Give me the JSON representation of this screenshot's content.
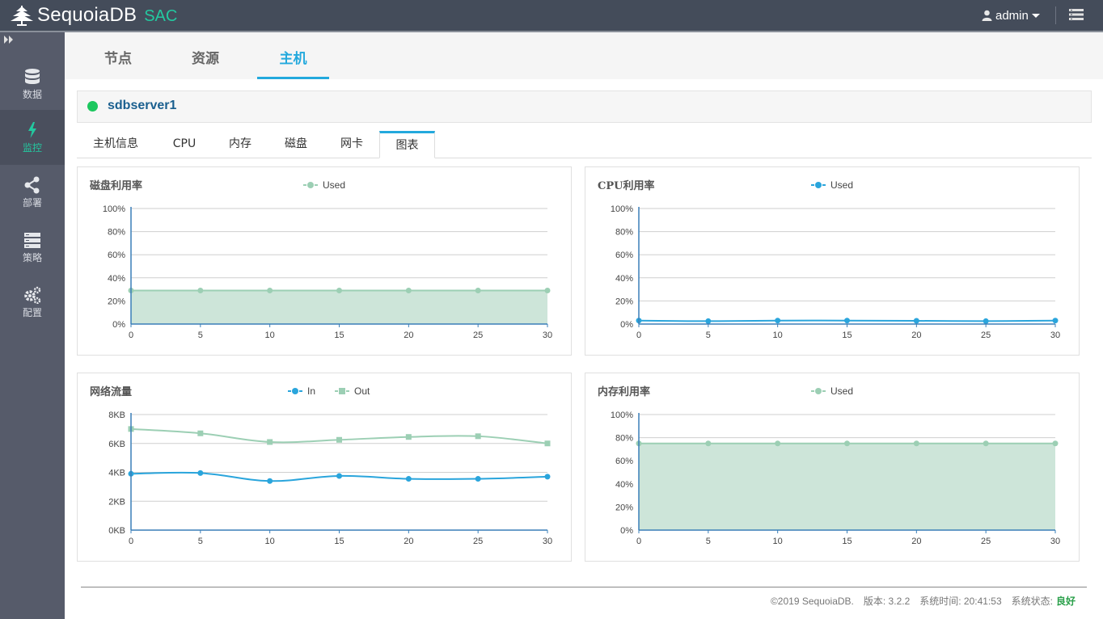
{
  "app": {
    "name": "SequoiaDB",
    "suffix": "SAC"
  },
  "header": {
    "user": "admin"
  },
  "sidebar": {
    "items": [
      {
        "label": "数据",
        "icon": "database-icon"
      },
      {
        "label": "监控",
        "icon": "lightning-icon",
        "active": true
      },
      {
        "label": "部署",
        "icon": "share-icon"
      },
      {
        "label": "策略",
        "icon": "server-icon"
      },
      {
        "label": "配置",
        "icon": "gears-icon"
      }
    ]
  },
  "main_tabs": [
    {
      "label": "节点"
    },
    {
      "label": "资源"
    },
    {
      "label": "主机",
      "active": true
    }
  ],
  "host": {
    "name": "sdbserver1",
    "status_color": "#1cc75e"
  },
  "sub_tabs": [
    {
      "label": "主机信息"
    },
    {
      "label": "CPU"
    },
    {
      "label": "内存"
    },
    {
      "label": "磁盘"
    },
    {
      "label": "网卡"
    },
    {
      "label": "图表",
      "active": true
    }
  ],
  "chart_data": [
    {
      "type": "area",
      "title": "磁盘利用率",
      "x": [
        0,
        5,
        10,
        15,
        20,
        25,
        30
      ],
      "y_ticks": [
        "0%",
        "20%",
        "40%",
        "60%",
        "80%",
        "100%"
      ],
      "ylim": [
        0,
        100
      ],
      "series": [
        {
          "name": "Used",
          "values": [
            29,
            29,
            29,
            29,
            29,
            29,
            29
          ],
          "color": "#9ccfb4",
          "fill": true,
          "marker": "circle"
        }
      ],
      "legend_position": "top"
    },
    {
      "type": "line",
      "title": "CPU利用率",
      "x": [
        0,
        5,
        10,
        15,
        20,
        25,
        30
      ],
      "y_ticks": [
        "0%",
        "20%",
        "40%",
        "60%",
        "80%",
        "100%"
      ],
      "ylim": [
        0,
        100
      ],
      "series": [
        {
          "name": "Used",
          "values": [
            3,
            2.5,
            3,
            3,
            2.8,
            2.5,
            3
          ],
          "color": "#2aa5dc",
          "fill": false,
          "marker": "circle"
        }
      ],
      "legend_position": "top"
    },
    {
      "type": "line",
      "title": "网络流量",
      "x": [
        0,
        5,
        10,
        15,
        20,
        25,
        30
      ],
      "y_ticks": [
        "0KB",
        "2KB",
        "4KB",
        "6KB",
        "8KB"
      ],
      "ylim": [
        0,
        8
      ],
      "series": [
        {
          "name": "In",
          "values": [
            3.9,
            3.95,
            3.4,
            3.75,
            3.55,
            3.55,
            3.7
          ],
          "color": "#2aa5dc",
          "fill": false,
          "marker": "circle"
        },
        {
          "name": "Out",
          "values": [
            7.0,
            6.7,
            6.1,
            6.25,
            6.45,
            6.5,
            6.0
          ],
          "color": "#9ccfb4",
          "fill": false,
          "marker": "square"
        }
      ],
      "legend_position": "top"
    },
    {
      "type": "area",
      "title": "内存利用率",
      "x": [
        0,
        5,
        10,
        15,
        20,
        25,
        30
      ],
      "y_ticks": [
        "0%",
        "20%",
        "40%",
        "60%",
        "80%",
        "100%"
      ],
      "ylim": [
        0,
        100
      ],
      "series": [
        {
          "name": "Used",
          "values": [
            75,
            75,
            75,
            75,
            75,
            75,
            75
          ],
          "color": "#9ccfb4",
          "fill": true,
          "marker": "circle"
        }
      ],
      "legend_position": "top"
    }
  ],
  "footer": {
    "copyright": "©2019 SequoiaDB.",
    "version": "版本: 3.2.2",
    "time": "系统时间: 20:41:53",
    "status_label": "系统状态:",
    "status_value": "良好"
  }
}
